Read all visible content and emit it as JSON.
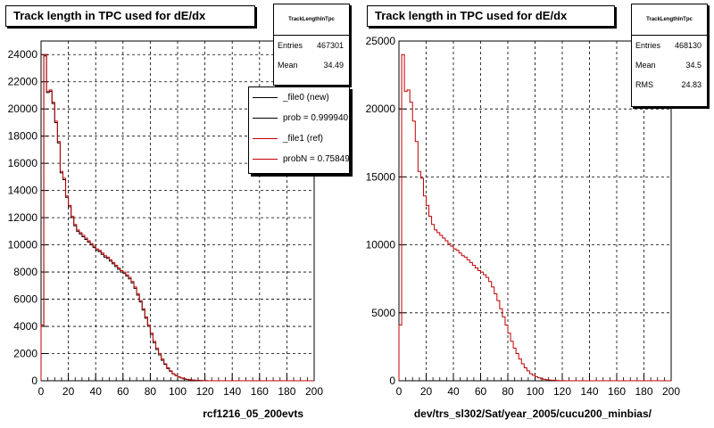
{
  "chart_data": [
    {
      "type": "line",
      "title": "Track length in TPC used for dE/dx",
      "xlabel": "rcf1216_05_200evts",
      "xlim": [
        0,
        200
      ],
      "ylim": [
        0,
        25000
      ],
      "x_ticks": [
        0,
        20,
        40,
        60,
        80,
        100,
        120,
        140,
        160,
        180,
        200
      ],
      "y_ticks": [
        0,
        2000,
        4000,
        6000,
        8000,
        10000,
        12000,
        14000,
        16000,
        18000,
        20000,
        22000,
        24000
      ],
      "grid": true,
      "stats": {
        "name": "TrackLengthInTpc",
        "entries_label": "Entries",
        "entries": "467301",
        "mean_label": "Mean",
        "mean": "34.49"
      },
      "legend": {
        "placement": "top-right",
        "entries": [
          {
            "label": "_file0 (new)",
            "color": "#000000"
          },
          {
            "label": "prob = 0.999940",
            "color": "#000000"
          },
          {
            "label": "_file1 (ref)",
            "color": "#c00000"
          },
          {
            "label": "probN = 0.758490",
            "color": "#c00000"
          }
        ]
      },
      "series": [
        {
          "color": "#000000",
          "x": [
            0,
            2,
            4,
            6,
            8,
            10,
            12,
            14,
            16,
            18,
            20,
            22,
            24,
            26,
            28,
            30,
            32,
            34,
            36,
            38,
            40,
            42,
            44,
            46,
            48,
            50,
            52,
            54,
            56,
            58,
            60,
            62,
            64,
            66,
            68,
            70,
            72,
            74,
            76,
            78,
            80,
            82,
            84,
            86,
            88,
            90,
            92,
            94,
            96,
            98,
            100,
            102,
            104,
            106,
            108,
            110,
            112,
            114,
            116,
            118,
            120,
            122,
            124,
            126,
            128,
            130,
            140,
            160,
            180,
            200
          ],
          "values": [
            4000,
            23900,
            21200,
            21300,
            20400,
            19000,
            17500,
            15300,
            14800,
            13500,
            12800,
            12000,
            11400,
            11000,
            10800,
            10600,
            10400,
            10200,
            10000,
            9800,
            9600,
            9500,
            9300,
            9100,
            9000,
            8800,
            8600,
            8400,
            8200,
            8000,
            7900,
            7700,
            7500,
            7200,
            6800,
            6300,
            5800,
            5200,
            4600,
            4000,
            3400,
            2800,
            2300,
            1900,
            1500,
            1200,
            900,
            700,
            500,
            380,
            280,
            200,
            140,
            100,
            70,
            50,
            35,
            25,
            15,
            10,
            6,
            4,
            2,
            1,
            1,
            0,
            0,
            0,
            0,
            0
          ]
        },
        {
          "color": "#c00000",
          "x": [
            0,
            2,
            4,
            6,
            8,
            10,
            12,
            14,
            16,
            18,
            20,
            22,
            24,
            26,
            28,
            30,
            32,
            34,
            36,
            38,
            40,
            42,
            44,
            46,
            48,
            50,
            52,
            54,
            56,
            58,
            60,
            62,
            64,
            66,
            68,
            70,
            72,
            74,
            76,
            78,
            80,
            82,
            84,
            86,
            88,
            90,
            92,
            94,
            96,
            98,
            100,
            102,
            104,
            106,
            108,
            110,
            112,
            114,
            116,
            118,
            120,
            122,
            124,
            126,
            128,
            130,
            140,
            160,
            180,
            200
          ],
          "values": [
            4100,
            24000,
            21300,
            21400,
            20500,
            19100,
            17600,
            15400,
            14900,
            13600,
            12900,
            12100,
            11500,
            11100,
            10900,
            10700,
            10500,
            10300,
            10100,
            9900,
            9700,
            9600,
            9400,
            9200,
            9100,
            8900,
            8700,
            8500,
            8300,
            8100,
            8000,
            7800,
            7600,
            7300,
            6900,
            6400,
            5900,
            5300,
            4700,
            4100,
            3500,
            2900,
            2400,
            2000,
            1600,
            1250,
            950,
            730,
            520,
            400,
            290,
            210,
            150,
            105,
            75,
            52,
            37,
            26,
            16,
            11,
            7,
            4,
            3,
            1,
            1,
            0,
            0,
            0,
            0,
            0
          ]
        }
      ]
    },
    {
      "type": "line",
      "title": "Track length in TPC used for dE/dx",
      "xlabel": "dev/trs_sl302/Sat/year_2005/cucu200_minbias/",
      "xlim": [
        0,
        200
      ],
      "ylim": [
        0,
        25000
      ],
      "x_ticks": [
        0,
        20,
        40,
        60,
        80,
        100,
        120,
        140,
        160,
        180,
        200
      ],
      "y_ticks": [
        0,
        5000,
        10000,
        15000,
        20000,
        25000
      ],
      "grid": true,
      "stats": {
        "name": "TrackLengthInTpc",
        "entries_label": "Entries",
        "entries": "468130",
        "mean_label": "Mean",
        "mean": "34.5",
        "rms_label": "RMS",
        "rms": "24.83"
      },
      "series": [
        {
          "color": "#c00000",
          "x": [
            0,
            2,
            4,
            6,
            8,
            10,
            12,
            14,
            16,
            18,
            20,
            22,
            24,
            26,
            28,
            30,
            32,
            34,
            36,
            38,
            40,
            42,
            44,
            46,
            48,
            50,
            52,
            54,
            56,
            58,
            60,
            62,
            64,
            66,
            68,
            70,
            72,
            74,
            76,
            78,
            80,
            82,
            84,
            86,
            88,
            90,
            92,
            94,
            96,
            98,
            100,
            102,
            104,
            106,
            108,
            110,
            112,
            114,
            116,
            118,
            120,
            122,
            124,
            126,
            128,
            130,
            140,
            160,
            180,
            200
          ],
          "values": [
            4100,
            24000,
            21300,
            21400,
            20500,
            19100,
            17600,
            15400,
            14900,
            13600,
            12900,
            12100,
            11500,
            11100,
            10900,
            10700,
            10500,
            10300,
            10100,
            9900,
            9700,
            9600,
            9400,
            9200,
            9100,
            8900,
            8700,
            8500,
            8300,
            8100,
            8000,
            7800,
            7600,
            7300,
            6900,
            6400,
            5900,
            5300,
            4700,
            4100,
            3500,
            2900,
            2400,
            2000,
            1600,
            1250,
            950,
            730,
            520,
            400,
            290,
            210,
            150,
            105,
            75,
            52,
            37,
            26,
            16,
            11,
            7,
            4,
            3,
            1,
            1,
            0,
            0,
            0,
            0,
            0
          ]
        }
      ]
    }
  ]
}
